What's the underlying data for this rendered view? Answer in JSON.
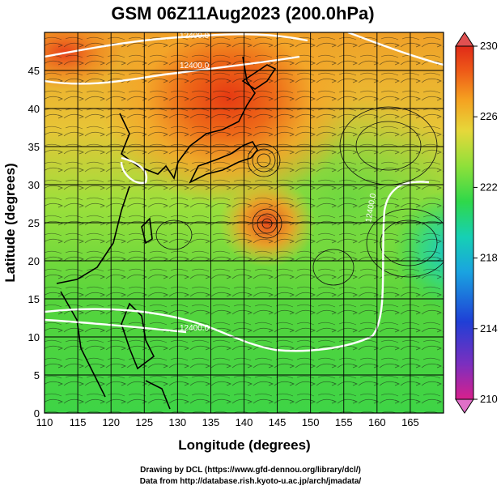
{
  "title": "GSM 06Z11Aug2023 (200.0hPa)",
  "xlabel": "Longitude (degrees)",
  "ylabel": "Latitude (degrees)",
  "lon_range": [
    110,
    170
  ],
  "lat_range": [
    0,
    50
  ],
  "x_ticks": [
    "110",
    "115",
    "120",
    "125",
    "130",
    "135",
    "140",
    "145",
    "150",
    "155",
    "160",
    "165"
  ],
  "y_ticks": [
    "0",
    "5",
    "10",
    "15",
    "20",
    "25",
    "30",
    "35",
    "40",
    "45"
  ],
  "colorbar": {
    "range": [
      210,
      230
    ],
    "labels": [
      "230",
      "226",
      "222",
      "218",
      "214",
      "210"
    ],
    "colors": [
      "#d8208c",
      "#7b2fbf",
      "#1f3fd6",
      "#1aa3e0",
      "#16d0b4",
      "#2fd84a",
      "#8ee03a",
      "#e6d83a",
      "#f5a020",
      "#ee5a18",
      "#e02a18"
    ]
  },
  "contour_labels": [
    "12400.0",
    "12400.0",
    "12400.0",
    "12400.0"
  ],
  "credits": {
    "line1": "Drawing by DCL (https://www.gfd-dennou.org/library/dcl/)",
    "line2": "Data from http://database.rish.kyoto-u.ac.jp/arch/jmadata/"
  }
}
